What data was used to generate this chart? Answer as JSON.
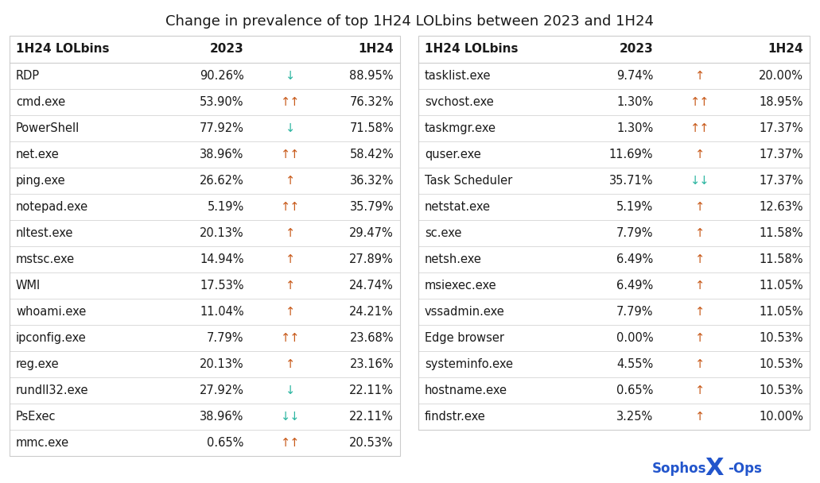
{
  "title": "Change in prevalence of top 1H24 LOLbins between 2023 and 1H24",
  "left_table": {
    "headers": [
      "1H24 LOLbins",
      "2023",
      "",
      "1H24"
    ],
    "rows": [
      [
        "RDP",
        "90.26%",
        "down1_teal",
        "88.95%"
      ],
      [
        "cmd.exe",
        "53.90%",
        "up2_orange",
        "76.32%"
      ],
      [
        "PowerShell",
        "77.92%",
        "down1_teal",
        "71.58%"
      ],
      [
        "net.exe",
        "38.96%",
        "up2_orange",
        "58.42%"
      ],
      [
        "ping.exe",
        "26.62%",
        "up1_orange",
        "36.32%"
      ],
      [
        "notepad.exe",
        "5.19%",
        "up2_orange",
        "35.79%"
      ],
      [
        "nltest.exe",
        "20.13%",
        "up1_orange",
        "29.47%"
      ],
      [
        "mstsc.exe",
        "14.94%",
        "up1_orange",
        "27.89%"
      ],
      [
        "WMI",
        "17.53%",
        "up1_orange",
        "24.74%"
      ],
      [
        "whoami.exe",
        "11.04%",
        "up1_orange",
        "24.21%"
      ],
      [
        "ipconfig.exe",
        "7.79%",
        "up2_orange",
        "23.68%"
      ],
      [
        "reg.exe",
        "20.13%",
        "up1_orange",
        "23.16%"
      ],
      [
        "rundll32.exe",
        "27.92%",
        "down1_teal",
        "22.11%"
      ],
      [
        "PsExec",
        "38.96%",
        "down2_teal",
        "22.11%"
      ],
      [
        "mmc.exe",
        "0.65%",
        "up2_orange",
        "20.53%"
      ]
    ]
  },
  "right_table": {
    "headers": [
      "1H24 LOLbins",
      "2023",
      "",
      "1H24"
    ],
    "rows": [
      [
        "tasklist.exe",
        "9.74%",
        "up1_orange",
        "20.00%"
      ],
      [
        "svchost.exe",
        "1.30%",
        "up2_orange",
        "18.95%"
      ],
      [
        "taskmgr.exe",
        "1.30%",
        "up2_orange",
        "17.37%"
      ],
      [
        "quser.exe",
        "11.69%",
        "up1_orange",
        "17.37%"
      ],
      [
        "Task Scheduler",
        "35.71%",
        "down2_teal",
        "17.37%"
      ],
      [
        "netstat.exe",
        "5.19%",
        "up1_orange",
        "12.63%"
      ],
      [
        "sc.exe",
        "7.79%",
        "up1_orange",
        "11.58%"
      ],
      [
        "netsh.exe",
        "6.49%",
        "up1_orange",
        "11.58%"
      ],
      [
        "msiexec.exe",
        "6.49%",
        "up1_orange",
        "11.05%"
      ],
      [
        "vssadmin.exe",
        "7.79%",
        "up1_orange",
        "11.05%"
      ],
      [
        "Edge browser",
        "0.00%",
        "up1_orange",
        "10.53%"
      ],
      [
        "systeminfo.exe",
        "4.55%",
        "up1_orange",
        "10.53%"
      ],
      [
        "hostname.exe",
        "0.65%",
        "up1_orange",
        "10.53%"
      ],
      [
        "findstr.exe",
        "3.25%",
        "up1_orange",
        "10.00%"
      ]
    ]
  },
  "colors": {
    "orange": "#C85A1A",
    "teal": "#2BB5A0",
    "bg": "#ffffff",
    "grid_line": "#cccccc",
    "text": "#1a1a1a",
    "sophos_blue": "#2255CC"
  },
  "figsize": [
    10.31,
    6.08
  ],
  "dpi": 100
}
